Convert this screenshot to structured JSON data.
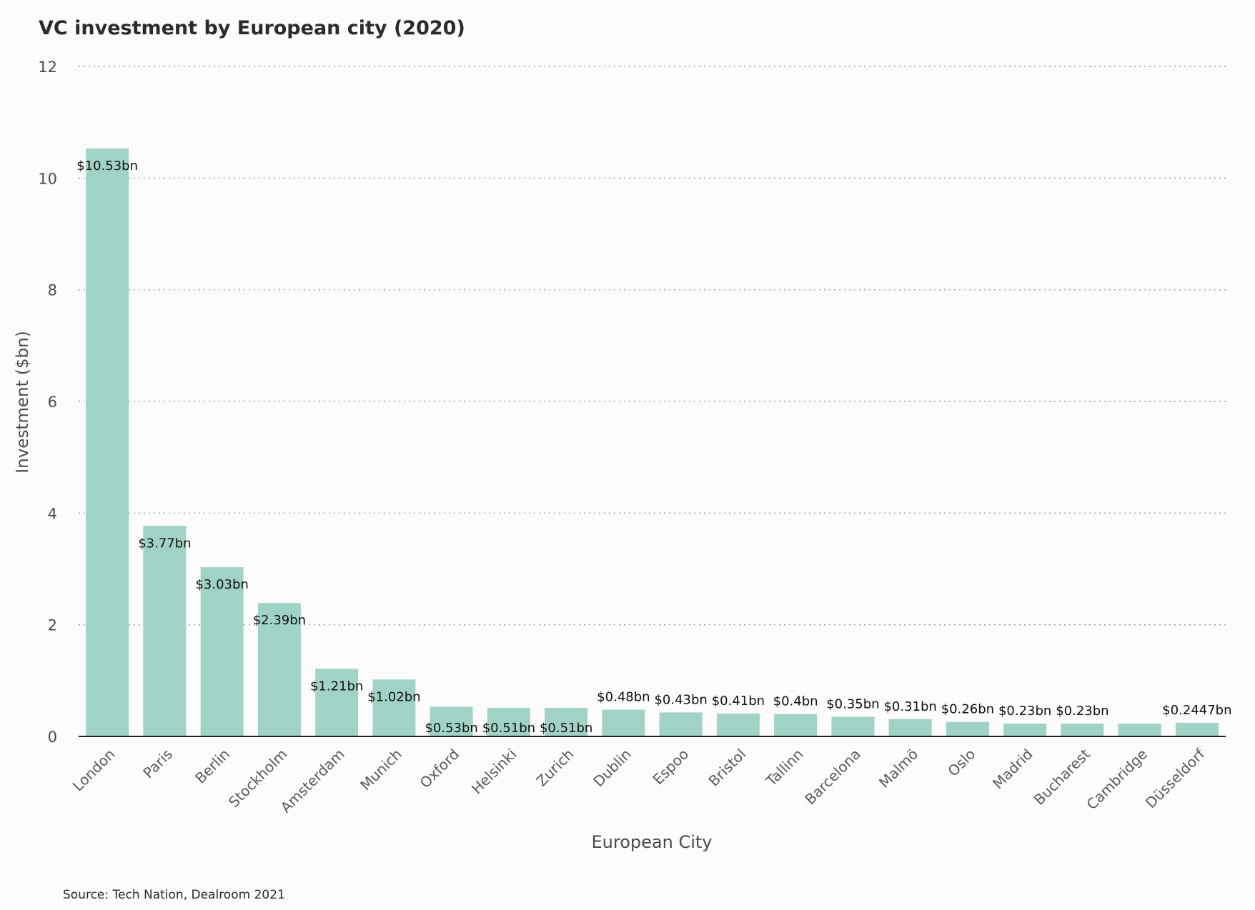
{
  "chart_data": {
    "type": "bar",
    "title": "VC investment by European city (2020)",
    "xlabel": "European City",
    "ylabel": "Investment ($bn)",
    "ylim": [
      0,
      12
    ],
    "yticks": [
      "0",
      "2",
      "4",
      "6",
      "8",
      "10",
      "12"
    ],
    "grid": true,
    "bar_color": "#a0d2c6",
    "categories": [
      "London",
      "Paris",
      "Berlin",
      "Stockholm",
      "Amsterdam",
      "Munich",
      "Oxford",
      "Helsinki",
      "Zurich",
      "Dublin",
      "Espoo",
      "Bristol",
      "Tallinn",
      "Barcelona",
      "Malmö",
      "Oslo",
      "Madrid",
      "Bucharest",
      "Cambridge",
      "Düsseldorf"
    ],
    "values": [
      10.53,
      3.77,
      3.03,
      2.39,
      1.21,
      1.02,
      0.53,
      0.51,
      0.51,
      0.48,
      0.43,
      0.41,
      0.4,
      0.35,
      0.31,
      0.26,
      0.23,
      0.23,
      0.23,
      0.2447
    ],
    "data_labels": [
      "$10.53bn",
      "$3.77bn",
      "$3.03bn",
      "$2.39bn",
      "$1.21bn",
      "$1.02bn",
      "$0.53bn",
      "$0.51bn",
      "$0.51bn",
      "$0.48bn",
      "$0.43bn",
      "$0.41bn",
      "$0.4bn",
      "$0.35bn",
      "$0.31bn",
      "$0.26bn",
      "$0.23bn",
      "$0.23bn",
      "",
      "$0.2447bn"
    ]
  },
  "source": "Source: Tech Nation, Dealroom 2021"
}
